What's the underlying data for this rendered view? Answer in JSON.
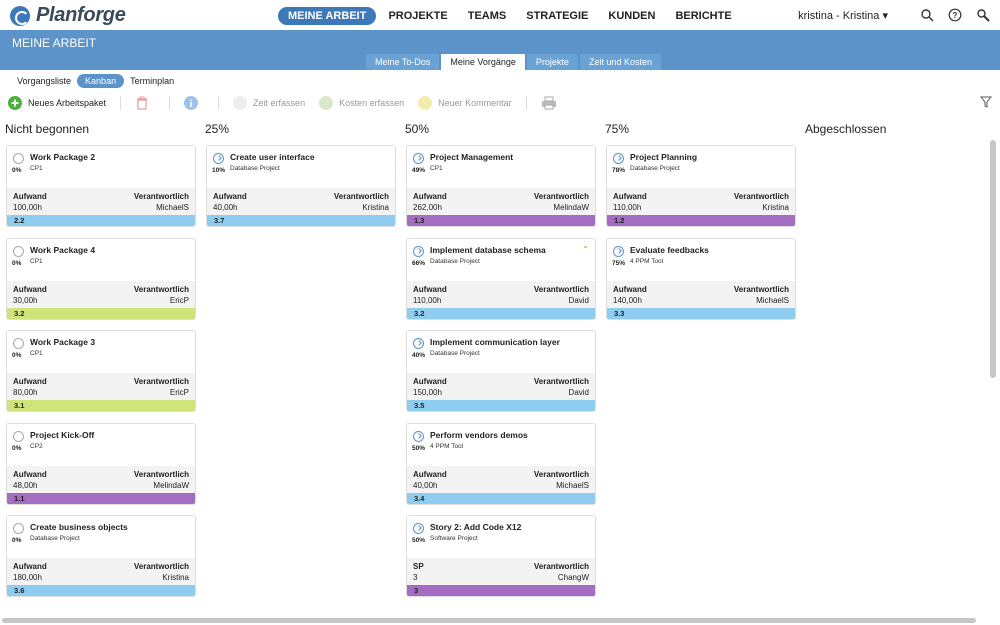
{
  "app": {
    "logo_text": "Planforge"
  },
  "nav": {
    "items": [
      "MEINE ARBEIT",
      "PROJEKTE",
      "TEAMS",
      "STRATEGIE",
      "KUNDEN",
      "BERICHTE"
    ],
    "active": 0,
    "user": "kristina - Kristina ▾"
  },
  "header": {
    "title": "MEINE ARBEIT"
  },
  "subtabs": {
    "items": [
      "Meine To-Dos",
      "Meine Vorgänge",
      "Projekte",
      "Zeit und Kosten"
    ],
    "active": 1
  },
  "views": {
    "items": [
      "Vorgangsliste",
      "Kanban",
      "Terminplan"
    ],
    "active": 1
  },
  "toolbar": {
    "new_label": "Neues Arbeitspaket",
    "time_label": "Zeit erfassen",
    "cost_label": "Kosten erfassen",
    "comment_label": "Neuer Kommentar"
  },
  "card_labels": {
    "effort": "Aufwand",
    "responsible": "Verantwortlich"
  },
  "colors": {
    "accent": "#5c93c9",
    "blue": "#8fcdf0",
    "green": "#cfe57a",
    "purple": "#a46dc2"
  },
  "columns": [
    {
      "title": "Nicht begonnen",
      "progress": 0
    },
    {
      "title": "25%",
      "progress": 25
    },
    {
      "title": "50%",
      "progress": 50
    },
    {
      "title": "75%",
      "progress": 75
    },
    {
      "title": "Abgeschlossen",
      "progress": 100
    }
  ],
  "cards": [
    [
      {
        "title": "Work Package 2",
        "project": "CP1",
        "pct": "0%",
        "effort": "100,00h",
        "resp": "MichaelS",
        "code": "2.2",
        "color": "blue"
      },
      {
        "title": "Work Package 4",
        "project": "CP1",
        "pct": "0%",
        "effort": "30,00h",
        "resp": "EricP",
        "code": "3.2",
        "color": "green"
      },
      {
        "title": "Work Package 3",
        "project": "CP1",
        "pct": "0%",
        "effort": "80,00h",
        "resp": "EricP",
        "code": "3.1",
        "color": "green"
      },
      {
        "title": "Project Kick-Off",
        "project": "CP2",
        "pct": "0%",
        "effort": "48,00h",
        "resp": "MelindaW",
        "code": "1.1",
        "color": "purple"
      },
      {
        "title": "Create business objects",
        "project": "Database Project",
        "pct": "0%",
        "effort": "180,00h",
        "resp": "Kristina",
        "code": "3.6",
        "color": "blue"
      }
    ],
    [
      {
        "title": "Create user interface",
        "project": "Database Project",
        "pct": "10%",
        "effort": "40,00h",
        "resp": "Kristina",
        "code": "3.7",
        "color": "blue"
      }
    ],
    [
      {
        "title": "Project Management",
        "project": "CP1",
        "pct": "49%",
        "effort": "262,00h",
        "resp": "MelindaW",
        "code": "1.3",
        "color": "purple"
      },
      {
        "title": "Implement database schema",
        "project": "Database Project",
        "pct": "66%",
        "effort": "110,00h",
        "resp": "David",
        "code": "3.2",
        "color": "blue",
        "priority": "⌃"
      },
      {
        "title": "Implement communication layer",
        "project": "Database Project",
        "pct": "40%",
        "effort": "150,00h",
        "resp": "David",
        "code": "3.5",
        "color": "blue"
      },
      {
        "title": "Perform vendors demos",
        "project": "4 PPM Tool",
        "pct": "50%",
        "effort": "40,00h",
        "resp": "MichaelS",
        "code": "3.4",
        "color": "blue"
      },
      {
        "title": "Story 2: Add Code X12",
        "project": "Software Project",
        "pct": "50%",
        "effort": "3",
        "resp": "ChangW",
        "code": "3",
        "color": "purple",
        "effort_label": "SP"
      }
    ],
    [
      {
        "title": "Project Planning",
        "project": "Database Project",
        "pct": "78%",
        "effort": "110,00h",
        "resp": "Kristina",
        "code": "1.2",
        "color": "purple"
      },
      {
        "title": "Evaluate feedbacks",
        "project": "4 PPM Tool",
        "pct": "75%",
        "effort": "140,00h",
        "resp": "MichaelS",
        "code": "3.3",
        "color": "blue"
      }
    ],
    []
  ]
}
